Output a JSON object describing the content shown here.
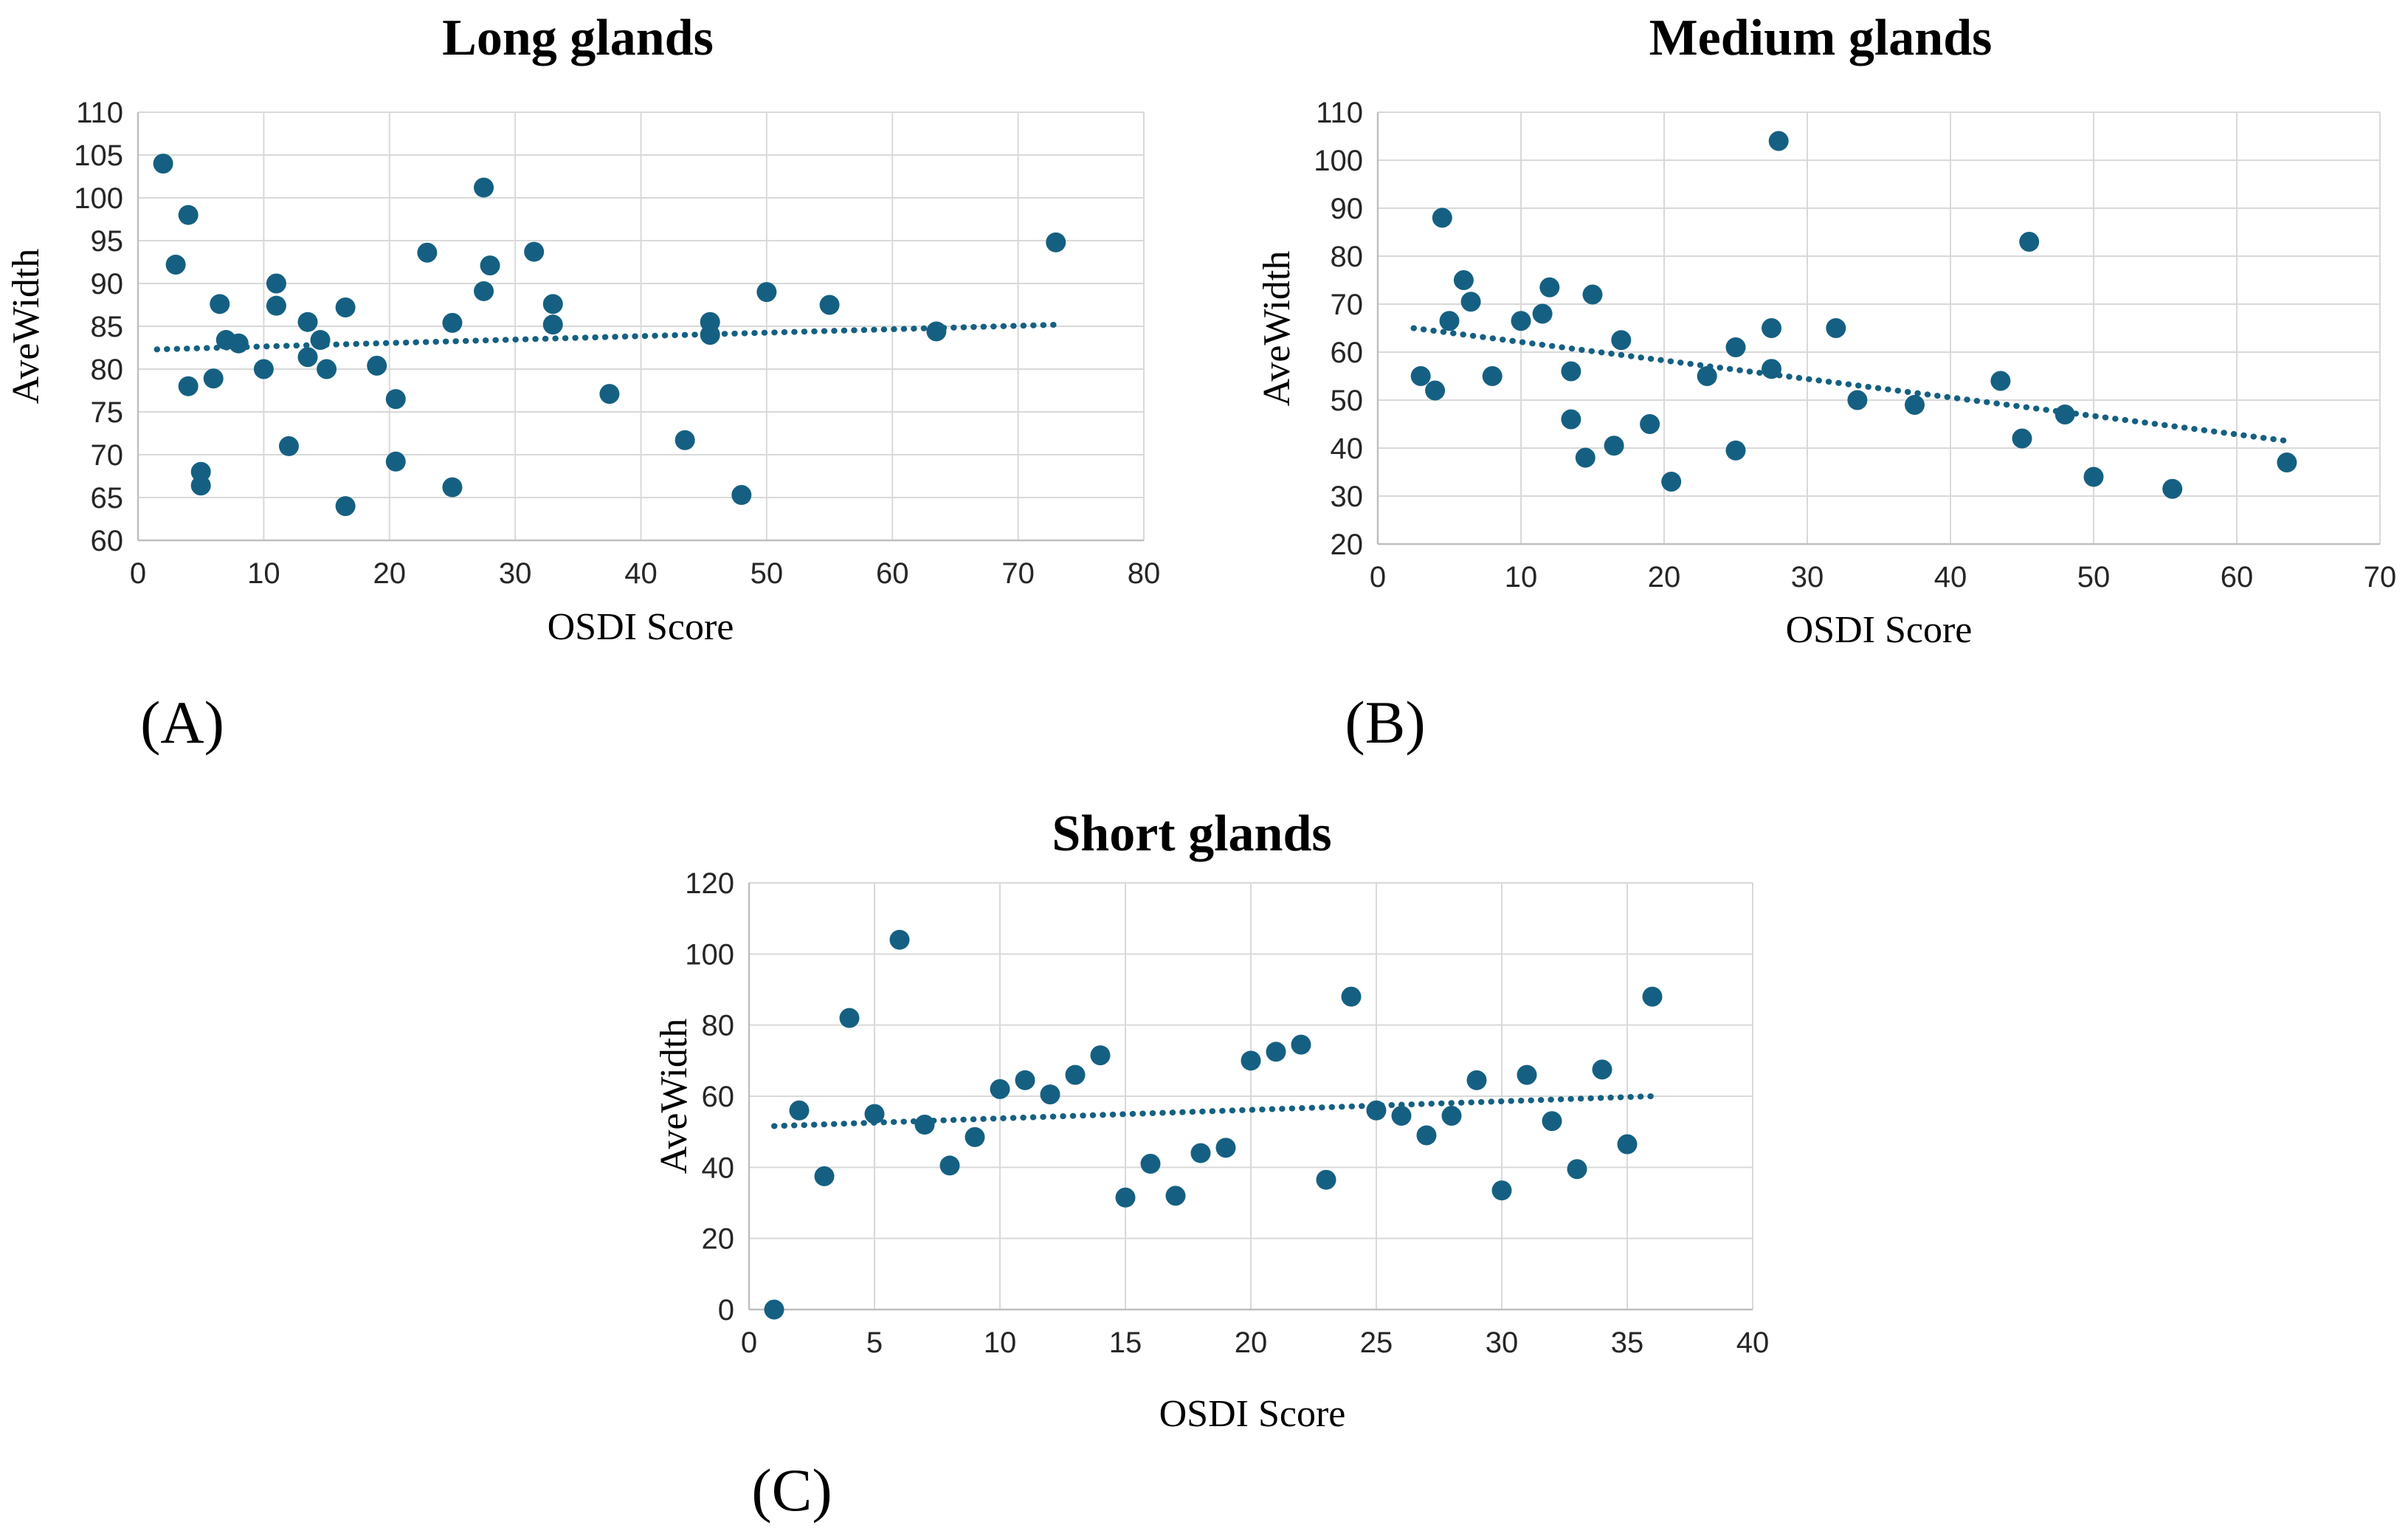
{
  "figure": {
    "description": "Scatter plots of OSDI Score versus AveWidth for long, medium and short meibomian glands"
  },
  "colors": {
    "point": "#156082",
    "trendline": "#156082",
    "gridline": "#D9D9D9",
    "axis_line": "#BFBFBF",
    "text": "#000000",
    "background": "#FFFFFF"
  },
  "chart_data": [
    {
      "type": "scatter",
      "title": "Long glands",
      "panel_label": "(A)",
      "xlabel": "OSDI Score",
      "ylabel": "AveWidth",
      "xlim": [
        0,
        80
      ],
      "xtick_step": 10,
      "ylim": [
        60,
        110
      ],
      "ytick_step": 5,
      "grid": true,
      "legend": "none",
      "points": [
        [
          2,
          104
        ],
        [
          4,
          98
        ],
        [
          3,
          92.2
        ],
        [
          4,
          78
        ],
        [
          5,
          68
        ],
        [
          5,
          66.4
        ],
        [
          6.5,
          87.6
        ],
        [
          6,
          78.9
        ],
        [
          7,
          83.4
        ],
        [
          8,
          83
        ],
        [
          10,
          80
        ],
        [
          11,
          90
        ],
        [
          11,
          87.4
        ],
        [
          12,
          71
        ],
        [
          13.5,
          85.5
        ],
        [
          14.5,
          83.4
        ],
        [
          13.5,
          81.4
        ],
        [
          15,
          80
        ],
        [
          16.5,
          87.2
        ],
        [
          16.5,
          64
        ],
        [
          19,
          80.4
        ],
        [
          20.5,
          76.5
        ],
        [
          20.5,
          69.2
        ],
        [
          23,
          93.6
        ],
        [
          25,
          85.4
        ],
        [
          25,
          66.2
        ],
        [
          27.5,
          101.2
        ],
        [
          28,
          92.1
        ],
        [
          27.5,
          89.1
        ],
        [
          31.5,
          93.7
        ],
        [
          33,
          87.6
        ],
        [
          33,
          85.2
        ],
        [
          37.5,
          77.1
        ],
        [
          43.5,
          71.7
        ],
        [
          45.5,
          85.5
        ],
        [
          45.5,
          84
        ],
        [
          48,
          65.3
        ],
        [
          50,
          89
        ],
        [
          55,
          87.5
        ],
        [
          63.5,
          84.4
        ],
        [
          73,
          94.8
        ]
      ],
      "trendline": {
        "style": "dotted",
        "x": [
          1.5,
          73.5
        ],
        "y": [
          82.3,
          85.2
        ]
      }
    },
    {
      "type": "scatter",
      "title": "Medium glands",
      "panel_label": "(B)",
      "xlabel": "OSDI Score",
      "ylabel": "AveWidth",
      "xlim": [
        0,
        70
      ],
      "xtick_step": 10,
      "ylim": [
        20,
        110
      ],
      "ytick_step": 10,
      "grid": true,
      "legend": "none",
      "points": [
        [
          3,
          55
        ],
        [
          4,
          52
        ],
        [
          4.5,
          88
        ],
        [
          5,
          66.5
        ],
        [
          6,
          75
        ],
        [
          6.5,
          70.5
        ],
        [
          8,
          55
        ],
        [
          10,
          66.5
        ],
        [
          11.5,
          68
        ],
        [
          12,
          73.5
        ],
        [
          13.5,
          56
        ],
        [
          13.5,
          46
        ],
        [
          14.5,
          38
        ],
        [
          15,
          72
        ],
        [
          16.5,
          40.5
        ],
        [
          17,
          62.5
        ],
        [
          19,
          45
        ],
        [
          20.5,
          33
        ],
        [
          23,
          55
        ],
        [
          25,
          61
        ],
        [
          25,
          39.5
        ],
        [
          27.5,
          56.5
        ],
        [
          27.5,
          65
        ],
        [
          28,
          104
        ],
        [
          32,
          65
        ],
        [
          33.5,
          50
        ],
        [
          37.5,
          49
        ],
        [
          43.5,
          54
        ],
        [
          45,
          42
        ],
        [
          45.5,
          83
        ],
        [
          48,
          47
        ],
        [
          50,
          34
        ],
        [
          55.5,
          31.5
        ],
        [
          63.5,
          37
        ]
      ],
      "trendline": {
        "style": "dotted",
        "x": [
          2.5,
          63.5
        ],
        "y": [
          65,
          41.5
        ]
      }
    },
    {
      "type": "scatter",
      "title": "Short glands",
      "panel_label": "(C)",
      "xlabel": "OSDI Score",
      "ylabel": "AveWidth",
      "xlim": [
        0,
        40
      ],
      "xtick_step": 5,
      "ylim": [
        0,
        120
      ],
      "ytick_step": 20,
      "grid": true,
      "legend": "none",
      "points": [
        [
          1,
          0
        ],
        [
          2,
          56
        ],
        [
          3,
          37.5
        ],
        [
          4,
          82
        ],
        [
          5,
          55
        ],
        [
          6,
          104
        ],
        [
          7,
          52
        ],
        [
          8,
          40.5
        ],
        [
          9,
          48.5
        ],
        [
          10,
          62
        ],
        [
          11,
          64.5
        ],
        [
          12,
          60.5
        ],
        [
          13,
          66
        ],
        [
          14,
          71.5
        ],
        [
          15,
          31.5
        ],
        [
          16,
          41
        ],
        [
          17,
          32
        ],
        [
          18,
          44
        ],
        [
          19,
          45.5
        ],
        [
          20,
          70
        ],
        [
          21,
          72.5
        ],
        [
          22,
          74.5
        ],
        [
          23,
          36.5
        ],
        [
          24,
          88
        ],
        [
          25,
          56
        ],
        [
          26,
          54.5
        ],
        [
          27,
          49
        ],
        [
          28,
          54.5
        ],
        [
          29,
          64.5
        ],
        [
          30,
          33.5
        ],
        [
          31,
          66
        ],
        [
          32,
          53
        ],
        [
          33,
          39.5
        ],
        [
          34,
          67.5
        ],
        [
          35,
          46.5
        ],
        [
          36,
          88
        ]
      ],
      "trendline": {
        "style": "dotted",
        "x": [
          1,
          36
        ],
        "y": [
          51.6,
          60
        ]
      }
    }
  ]
}
